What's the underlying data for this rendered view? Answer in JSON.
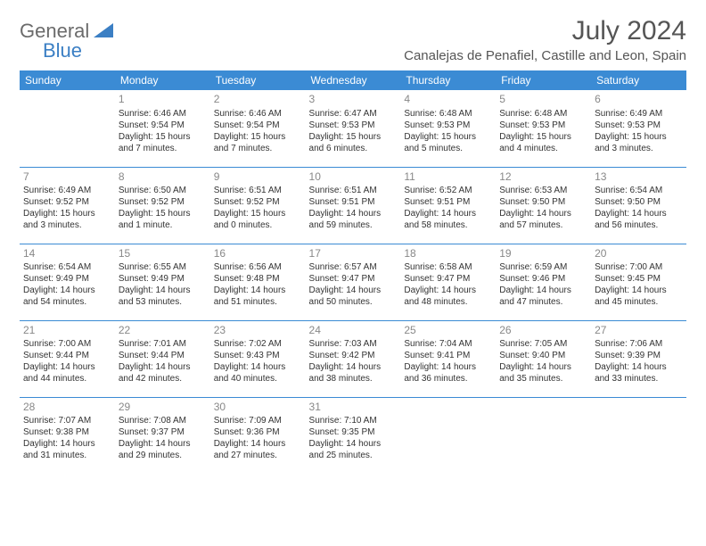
{
  "logo": {
    "word1": "General",
    "word2": "Blue"
  },
  "title": "July 2024",
  "location": "Canalejas de Penafiel, Castille and Leon, Spain",
  "colors": {
    "header_bg": "#3b8bd4",
    "header_fg": "#ffffff",
    "rule": "#3b8bd4",
    "logo_gray": "#6b6b6b",
    "logo_blue": "#3b7fc4",
    "text": "#333333",
    "daynum": "#888888",
    "bg": "#ffffff"
  },
  "day_headers": [
    "Sunday",
    "Monday",
    "Tuesday",
    "Wednesday",
    "Thursday",
    "Friday",
    "Saturday"
  ],
  "weeks": [
    [
      null,
      {
        "n": "1",
        "sr": "6:46 AM",
        "ss": "9:54 PM",
        "dl": "15 hours and 7 minutes."
      },
      {
        "n": "2",
        "sr": "6:46 AM",
        "ss": "9:54 PM",
        "dl": "15 hours and 7 minutes."
      },
      {
        "n": "3",
        "sr": "6:47 AM",
        "ss": "9:53 PM",
        "dl": "15 hours and 6 minutes."
      },
      {
        "n": "4",
        "sr": "6:48 AM",
        "ss": "9:53 PM",
        "dl": "15 hours and 5 minutes."
      },
      {
        "n": "5",
        "sr": "6:48 AM",
        "ss": "9:53 PM",
        "dl": "15 hours and 4 minutes."
      },
      {
        "n": "6",
        "sr": "6:49 AM",
        "ss": "9:53 PM",
        "dl": "15 hours and 3 minutes."
      }
    ],
    [
      {
        "n": "7",
        "sr": "6:49 AM",
        "ss": "9:52 PM",
        "dl": "15 hours and 3 minutes."
      },
      {
        "n": "8",
        "sr": "6:50 AM",
        "ss": "9:52 PM",
        "dl": "15 hours and 1 minute."
      },
      {
        "n": "9",
        "sr": "6:51 AM",
        "ss": "9:52 PM",
        "dl": "15 hours and 0 minutes."
      },
      {
        "n": "10",
        "sr": "6:51 AM",
        "ss": "9:51 PM",
        "dl": "14 hours and 59 minutes."
      },
      {
        "n": "11",
        "sr": "6:52 AM",
        "ss": "9:51 PM",
        "dl": "14 hours and 58 minutes."
      },
      {
        "n": "12",
        "sr": "6:53 AM",
        "ss": "9:50 PM",
        "dl": "14 hours and 57 minutes."
      },
      {
        "n": "13",
        "sr": "6:54 AM",
        "ss": "9:50 PM",
        "dl": "14 hours and 56 minutes."
      }
    ],
    [
      {
        "n": "14",
        "sr": "6:54 AM",
        "ss": "9:49 PM",
        "dl": "14 hours and 54 minutes."
      },
      {
        "n": "15",
        "sr": "6:55 AM",
        "ss": "9:49 PM",
        "dl": "14 hours and 53 minutes."
      },
      {
        "n": "16",
        "sr": "6:56 AM",
        "ss": "9:48 PM",
        "dl": "14 hours and 51 minutes."
      },
      {
        "n": "17",
        "sr": "6:57 AM",
        "ss": "9:47 PM",
        "dl": "14 hours and 50 minutes."
      },
      {
        "n": "18",
        "sr": "6:58 AM",
        "ss": "9:47 PM",
        "dl": "14 hours and 48 minutes."
      },
      {
        "n": "19",
        "sr": "6:59 AM",
        "ss": "9:46 PM",
        "dl": "14 hours and 47 minutes."
      },
      {
        "n": "20",
        "sr": "7:00 AM",
        "ss": "9:45 PM",
        "dl": "14 hours and 45 minutes."
      }
    ],
    [
      {
        "n": "21",
        "sr": "7:00 AM",
        "ss": "9:44 PM",
        "dl": "14 hours and 44 minutes."
      },
      {
        "n": "22",
        "sr": "7:01 AM",
        "ss": "9:44 PM",
        "dl": "14 hours and 42 minutes."
      },
      {
        "n": "23",
        "sr": "7:02 AM",
        "ss": "9:43 PM",
        "dl": "14 hours and 40 minutes."
      },
      {
        "n": "24",
        "sr": "7:03 AM",
        "ss": "9:42 PM",
        "dl": "14 hours and 38 minutes."
      },
      {
        "n": "25",
        "sr": "7:04 AM",
        "ss": "9:41 PM",
        "dl": "14 hours and 36 minutes."
      },
      {
        "n": "26",
        "sr": "7:05 AM",
        "ss": "9:40 PM",
        "dl": "14 hours and 35 minutes."
      },
      {
        "n": "27",
        "sr": "7:06 AM",
        "ss": "9:39 PM",
        "dl": "14 hours and 33 minutes."
      }
    ],
    [
      {
        "n": "28",
        "sr": "7:07 AM",
        "ss": "9:38 PM",
        "dl": "14 hours and 31 minutes."
      },
      {
        "n": "29",
        "sr": "7:08 AM",
        "ss": "9:37 PM",
        "dl": "14 hours and 29 minutes."
      },
      {
        "n": "30",
        "sr": "7:09 AM",
        "ss": "9:36 PM",
        "dl": "14 hours and 27 minutes."
      },
      {
        "n": "31",
        "sr": "7:10 AM",
        "ss": "9:35 PM",
        "dl": "14 hours and 25 minutes."
      },
      null,
      null,
      null
    ]
  ],
  "labels": {
    "sunrise": "Sunrise: ",
    "sunset": "Sunset: ",
    "daylight": "Daylight: "
  }
}
